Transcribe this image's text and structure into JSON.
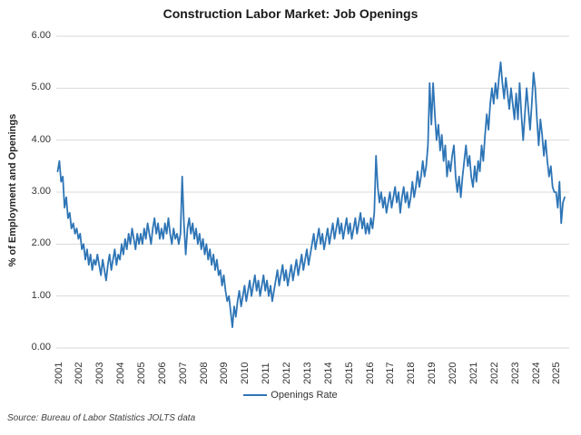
{
  "chart_data": {
    "type": "line",
    "title": "Construction Labor Market: Job Openings",
    "y_axis_label": "% of Employment and Openings",
    "legend_label": "Openings Rate",
    "source": "Source: Bureau of Labor Statistics JOLTS data",
    "legend_position": "bottom-center",
    "grid": "horizontal",
    "line_color": "#2E75B6",
    "gridline_color": "#D9D9D9",
    "text_color": "#333333",
    "ylim": [
      0,
      6
    ],
    "y_ticks": [
      "0.00",
      "1.00",
      "2.00",
      "3.00",
      "4.00",
      "5.00",
      "6.00"
    ],
    "x_tick_years": [
      "2001",
      "2002",
      "2003",
      "2004",
      "2005",
      "2006",
      "2007",
      "2008",
      "2009",
      "2010",
      "2011",
      "2012",
      "2013",
      "2014",
      "2015",
      "2016",
      "2017",
      "2018",
      "2019",
      "2020",
      "2021",
      "2022",
      "2023",
      "2024",
      "2025"
    ],
    "x_start": "2001-01",
    "x_freq": "monthly",
    "series": [
      {
        "name": "Openings Rate",
        "values": [
          3.4,
          3.6,
          3.2,
          3.3,
          2.7,
          2.9,
          2.5,
          2.6,
          2.3,
          2.4,
          2.2,
          2.3,
          2.1,
          2.2,
          1.9,
          2.0,
          1.7,
          1.9,
          1.6,
          1.8,
          1.5,
          1.7,
          1.6,
          1.8,
          1.6,
          1.4,
          1.7,
          1.5,
          1.3,
          1.6,
          1.8,
          1.5,
          1.7,
          1.9,
          1.6,
          1.8,
          1.7,
          2.0,
          1.8,
          2.1,
          1.9,
          2.2,
          2.0,
          2.3,
          2.1,
          1.9,
          2.2,
          2.0,
          2.2,
          2.0,
          2.3,
          2.1,
          2.4,
          2.2,
          2.0,
          2.3,
          2.5,
          2.2,
          2.4,
          2.1,
          2.3,
          2.1,
          2.4,
          2.2,
          2.5,
          2.2,
          2.0,
          2.3,
          2.1,
          2.2,
          2.0,
          2.2,
          3.3,
          2.4,
          1.8,
          2.3,
          2.5,
          2.2,
          2.4,
          2.1,
          2.3,
          2.0,
          2.2,
          1.9,
          2.1,
          1.8,
          2.0,
          1.7,
          1.9,
          1.6,
          1.8,
          1.5,
          1.7,
          1.4,
          1.5,
          1.2,
          1.4,
          1.1,
          0.9,
          1.0,
          0.7,
          0.4,
          0.8,
          0.6,
          0.9,
          1.1,
          0.8,
          1.0,
          1.2,
          0.9,
          1.1,
          1.3,
          1.0,
          1.2,
          1.4,
          1.1,
          1.3,
          1.0,
          1.2,
          1.4,
          1.1,
          1.3,
          1.0,
          1.2,
          0.9,
          1.1,
          1.3,
          1.5,
          1.2,
          1.4,
          1.6,
          1.3,
          1.5,
          1.2,
          1.4,
          1.6,
          1.3,
          1.5,
          1.7,
          1.4,
          1.6,
          1.8,
          1.5,
          1.7,
          1.9,
          1.6,
          1.8,
          2.0,
          2.2,
          1.9,
          2.1,
          2.3,
          2.0,
          2.2,
          1.9,
          2.1,
          2.3,
          2.0,
          2.2,
          2.4,
          2.1,
          2.3,
          2.5,
          2.2,
          2.4,
          2.1,
          2.3,
          2.5,
          2.2,
          2.4,
          2.1,
          2.3,
          2.5,
          2.2,
          2.4,
          2.6,
          2.3,
          2.5,
          2.2,
          2.4,
          2.2,
          2.5,
          2.3,
          2.6,
          3.7,
          3.1,
          2.8,
          3.0,
          2.7,
          2.9,
          2.6,
          2.8,
          3.0,
          2.7,
          2.9,
          3.1,
          2.8,
          3.0,
          2.6,
          2.9,
          3.1,
          2.8,
          3.0,
          2.7,
          2.9,
          3.2,
          2.9,
          3.1,
          3.4,
          3.1,
          3.3,
          3.6,
          3.3,
          3.5,
          3.9,
          5.1,
          4.3,
          5.1,
          4.5,
          4.0,
          4.3,
          3.8,
          4.1,
          3.6,
          3.9,
          3.3,
          3.6,
          3.4,
          3.7,
          3.9,
          3.3,
          3.0,
          3.3,
          2.9,
          3.3,
          3.6,
          3.9,
          3.5,
          3.7,
          3.3,
          3.1,
          3.5,
          3.2,
          3.6,
          3.4,
          3.9,
          3.6,
          4.1,
          4.5,
          4.2,
          4.7,
          5.0,
          4.7,
          5.1,
          4.8,
          5.2,
          5.5,
          5.1,
          4.8,
          5.2,
          4.9,
          4.6,
          5.0,
          4.7,
          4.4,
          4.9,
          4.4,
          5.1,
          4.5,
          4.0,
          4.5,
          5.0,
          4.6,
          4.2,
          4.7,
          5.3,
          5.0,
          4.4,
          3.9,
          4.4,
          4.1,
          3.7,
          4.0,
          3.6,
          3.3,
          3.5,
          3.1,
          3.0,
          3.0,
          2.7,
          3.2,
          2.4,
          2.8,
          2.9
        ]
      }
    ]
  }
}
